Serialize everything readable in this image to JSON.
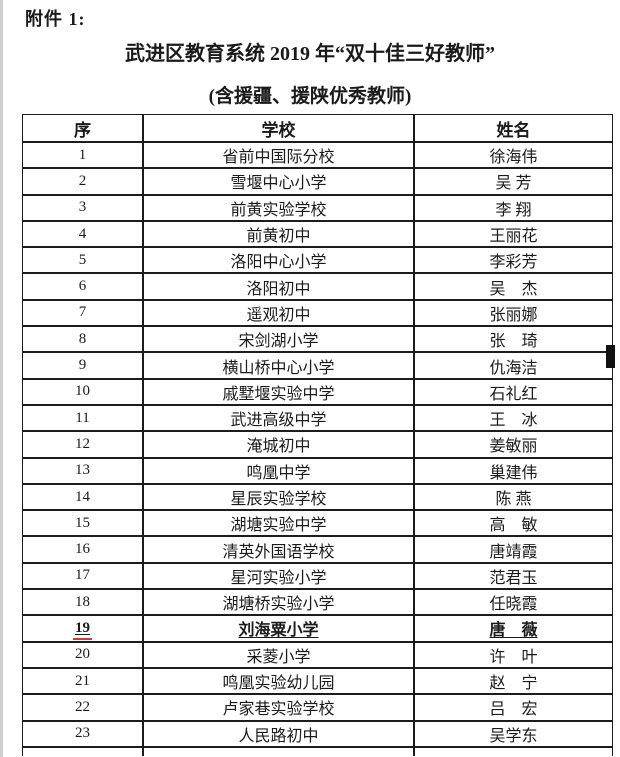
{
  "page": {
    "attachment_label": "附件 1:",
    "title": "武进区教育系统 2019 年“双十佳三好教师”",
    "subtitle": "(含援疆、援陕优秀教师)"
  },
  "colors": {
    "highlight_underline_red": "#d03a3a",
    "table_border": "#1c1c1c",
    "text": "#1a1a1a",
    "scan_artifact": "#111111"
  },
  "table": {
    "headers": [
      "序",
      "学校",
      "姓名"
    ],
    "rows": [
      {
        "no": "1",
        "school": "省前中国际分校",
        "name": "徐海伟",
        "highlight": false
      },
      {
        "no": "2",
        "school": "雪堰中心小学",
        "name": "吴 芳",
        "highlight": false
      },
      {
        "no": "3",
        "school": "前黄实验学校",
        "name": "李 翔",
        "highlight": false
      },
      {
        "no": "4",
        "school": "前黄初中",
        "name": "王丽花",
        "highlight": false
      },
      {
        "no": "5",
        "school": "洛阳中心小学",
        "name": "李彩芳",
        "highlight": false
      },
      {
        "no": "6",
        "school": "洛阳初中",
        "name": "吴　杰",
        "highlight": false
      },
      {
        "no": "7",
        "school": "遥观初中",
        "name": "张丽娜",
        "highlight": false
      },
      {
        "no": "8",
        "school": "宋剑湖小学",
        "name": "张　琦",
        "highlight": false
      },
      {
        "no": "9",
        "school": "横山桥中心小学",
        "name": "仇海洁",
        "highlight": false
      },
      {
        "no": "10",
        "school": "戚墅堰实验中学",
        "name": "石礼红",
        "highlight": false
      },
      {
        "no": "11",
        "school": "武进高级中学",
        "name": "王　冰",
        "highlight": false
      },
      {
        "no": "12",
        "school": "淹城初中",
        "name": "姜敏丽",
        "highlight": false
      },
      {
        "no": "13",
        "school": "鸣凰中学",
        "name": "巢建伟",
        "highlight": false
      },
      {
        "no": "14",
        "school": "星辰实验学校",
        "name": "陈 燕",
        "highlight": false
      },
      {
        "no": "15",
        "school": "湖塘实验中学",
        "name": "高　敏",
        "highlight": false
      },
      {
        "no": "16",
        "school": "清英外国语学校",
        "name": "唐靖霞",
        "highlight": false
      },
      {
        "no": "17",
        "school": "星河实验小学",
        "name": "范君玉",
        "highlight": false
      },
      {
        "no": "18",
        "school": "湖塘桥实验小学",
        "name": "任晓霞",
        "highlight": false
      },
      {
        "no": "19",
        "school": "刘海粟小学",
        "name": "唐　薇",
        "highlight": true
      },
      {
        "no": "20",
        "school": "采菱小学",
        "name": "许　叶",
        "highlight": false
      },
      {
        "no": "21",
        "school": "鸣凰实验幼儿园",
        "name": "赵　宁",
        "highlight": false
      },
      {
        "no": "22",
        "school": "卢家巷实验学校",
        "name": "吕　宏",
        "highlight": false
      },
      {
        "no": "23",
        "school": "人民路初中",
        "name": "吴学东",
        "highlight": false
      }
    ]
  }
}
